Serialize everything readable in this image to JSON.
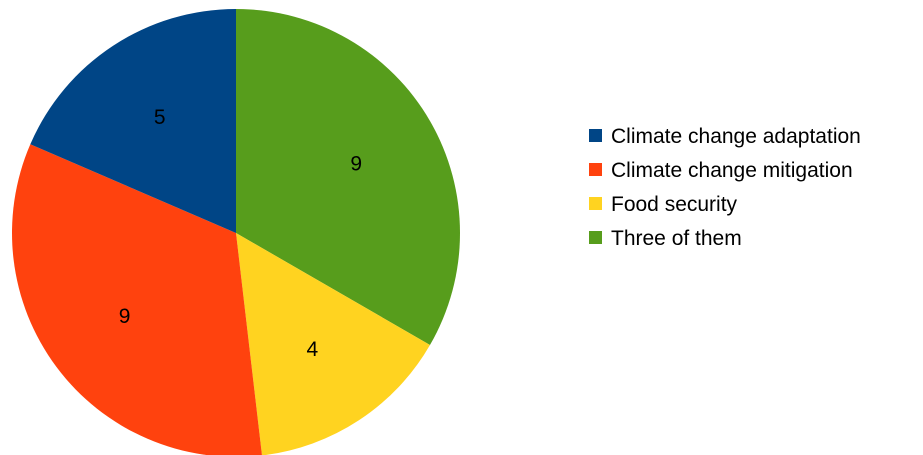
{
  "chart_data": {
    "type": "pie",
    "categories": [
      "Climate change adaptation",
      "Climate change mitigation",
      "Food security",
      "Three of them"
    ],
    "values": [
      5,
      9,
      4,
      9
    ],
    "colors": [
      "#004586",
      "#ff420e",
      "#ffd320",
      "#579d1c"
    ],
    "legend_position": "right"
  }
}
